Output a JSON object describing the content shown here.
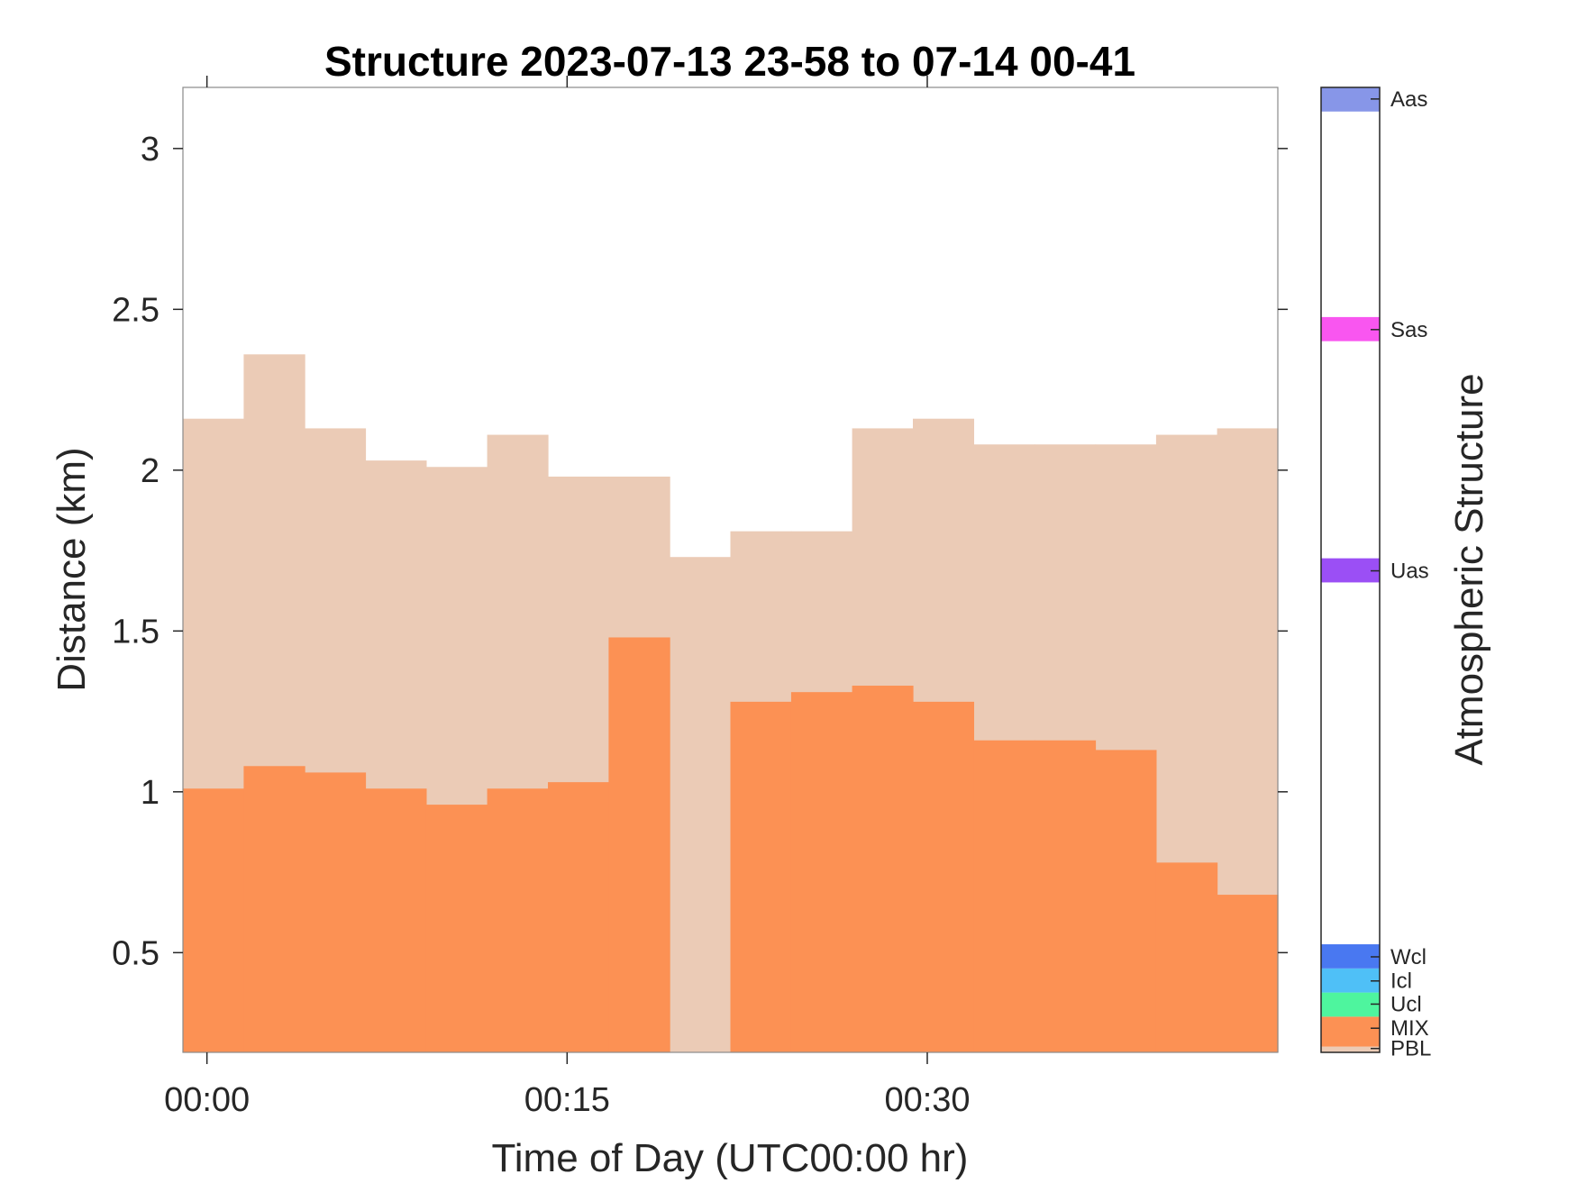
{
  "chart_data": {
    "type": "area",
    "title": "Structure 2023-07-13 23-58 to 07-14 00-41",
    "xlabel": "Time of Day (UTC00:00 hr)",
    "ylabel": "Distance (km)",
    "colorbar_label": "Atmospheric Structure",
    "x_unit": "minutes after 00:00 UTC",
    "xlim": [
      -1.0,
      44.6
    ],
    "ylim": [
      0.19,
      3.19
    ],
    "x_ticks": [
      0,
      15,
      30
    ],
    "x_tick_labels": [
      "00:00",
      "00:15",
      "00:30"
    ],
    "y_ticks": [
      0.5,
      1,
      1.5,
      2,
      2.5,
      3
    ],
    "y_tick_labels": [
      "0.5",
      "1",
      "1.5",
      "2",
      "2.5",
      "3"
    ],
    "bin_edges": [
      -1.0,
      1.53,
      4.07,
      6.6,
      9.13,
      11.67,
      14.2,
      16.73,
      19.27,
      21.8,
      24.33,
      26.87,
      29.4,
      31.93,
      34.47,
      37.0,
      39.53,
      42.07,
      44.6
    ],
    "series": [
      {
        "name": "PBL",
        "color": "#EBCBB6",
        "values": [
          2.16,
          2.36,
          2.13,
          2.03,
          2.01,
          2.11,
          1.98,
          1.98,
          1.73,
          1.81,
          1.81,
          2.13,
          2.16,
          2.08,
          2.08,
          2.08,
          2.11,
          2.13
        ]
      },
      {
        "name": "MIX",
        "color": "#FC9154",
        "values": [
          1.01,
          1.08,
          1.06,
          1.01,
          0.96,
          1.01,
          1.03,
          1.48,
          null,
          1.28,
          1.31,
          1.33,
          1.28,
          1.16,
          1.16,
          1.13,
          0.78,
          0.68
        ]
      }
    ],
    "colorbar": {
      "categories": [
        {
          "label": "PBL",
          "color": "#EBCBB6"
        },
        {
          "label": "MIX",
          "color": "#FC9154"
        },
        {
          "label": "Ucl",
          "color": "#4EF59E"
        },
        {
          "label": "Icl",
          "color": "#4FC0F7"
        },
        {
          "label": "Wcl",
          "color": "#4978F1"
        },
        {
          "label": "Uas",
          "color": "#9B4FF5"
        },
        {
          "label": "Sas",
          "color": "#F956F0"
        },
        {
          "label": "Aas",
          "color": "#8796E8"
        }
      ]
    }
  }
}
